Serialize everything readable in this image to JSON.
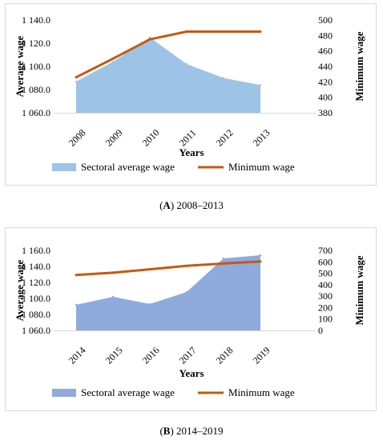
{
  "captions": [
    {
      "letter": "A",
      "text": ") 2008–2013"
    },
    {
      "letter": "B",
      "text": ") 2014–2019"
    }
  ],
  "chart_data": [
    {
      "type": "area",
      "title": "",
      "categories": [
        "2008",
        "2009",
        "2010",
        "2011",
        "2012",
        "2013"
      ],
      "xlabel": "Years",
      "ylabel": "Average wage",
      "y2label": "Minimum wage",
      "ylim": [
        1060,
        1140
      ],
      "yticks": [
        "1 060.0",
        "1 080.0",
        "1 100.0",
        "1 120.0",
        "1 140.0"
      ],
      "y2lim": [
        380,
        500
      ],
      "y2ticks": [
        "380",
        "400",
        "420",
        "440",
        "460",
        "480",
        "500"
      ],
      "series": [
        {
          "name": "Sectoral average wage",
          "kind": "area",
          "axis": "left",
          "color": "#9dc3e6",
          "values": [
            1087,
            1104,
            1125,
            1102,
            1090,
            1084
          ]
        },
        {
          "name": "Minimum wage",
          "kind": "line",
          "axis": "right",
          "color": "#c55a11",
          "values": [
            426,
            450,
            475,
            485,
            485,
            485
          ]
        }
      ],
      "legend": "bottom",
      "grid": false
    },
    {
      "type": "area",
      "title": "",
      "categories": [
        "2014",
        "2015",
        "2016",
        "2017",
        "2018",
        "2019"
      ],
      "xlabel": "Years",
      "ylabel": "Average wage",
      "y2label": "Minimum wage",
      "ylim": [
        1060,
        1160
      ],
      "yticks": [
        "1 060.0",
        "1 080.0",
        "1 100.0",
        "1 120.0",
        "1 140.0",
        "1 160.0"
      ],
      "y2lim": [
        0,
        700
      ],
      "y2ticks": [
        "0",
        "100",
        "200",
        "300",
        "400",
        "500",
        "600",
        "700"
      ],
      "series": [
        {
          "name": "Sectoral average wage",
          "kind": "area",
          "axis": "left",
          "color": "#8faadc",
          "values": [
            1092,
            1102,
            1093,
            1108,
            1150,
            1154
          ]
        },
        {
          "name": "Minimum wage",
          "kind": "line",
          "axis": "right",
          "color": "#c55a11",
          "values": [
            485,
            505,
            535,
            565,
            585,
            603
          ]
        }
      ],
      "legend": "bottom",
      "grid": false
    }
  ]
}
